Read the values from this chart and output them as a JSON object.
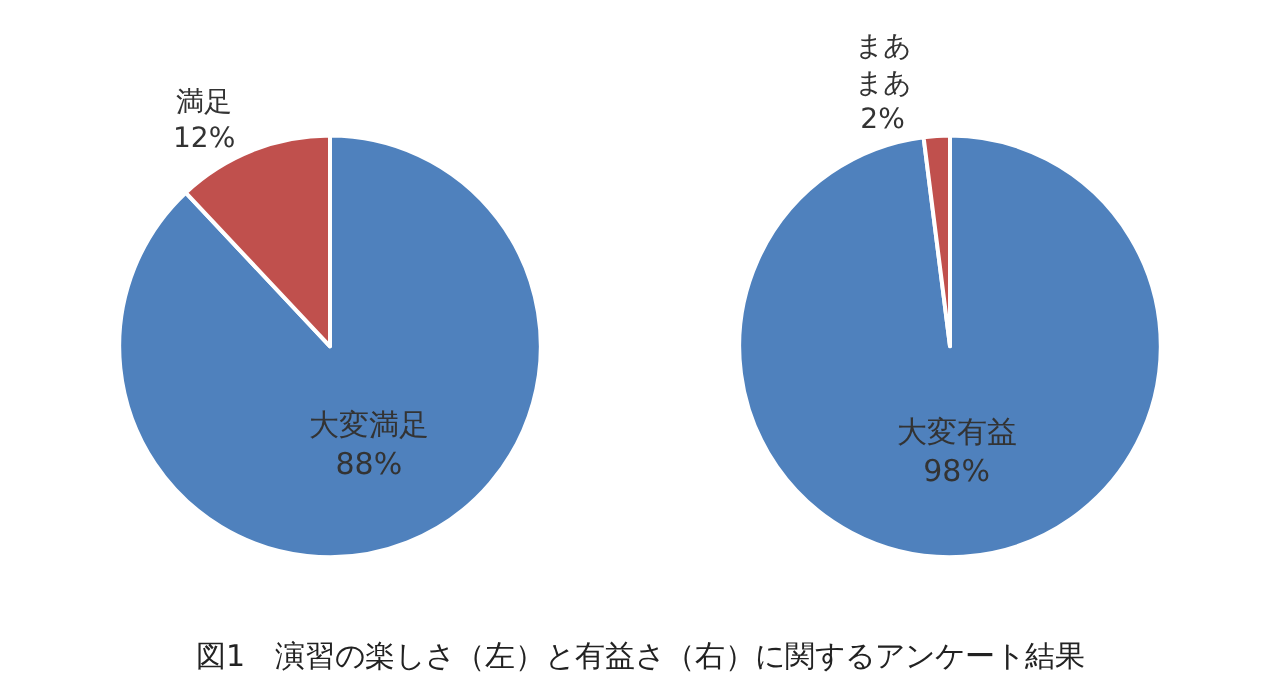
{
  "chart_data": [
    {
      "type": "pie",
      "categories": [
        "大変満足",
        "満足"
      ],
      "values": [
        88,
        12
      ],
      "value_labels": [
        "88%",
        "12%"
      ],
      "colors": [
        "#4f81bd",
        "#c0504d"
      ],
      "annotations": [
        "図1　演習の楽しさ（左）と有益さ（右）に関するアンケート結果"
      ]
    },
    {
      "type": "pie",
      "categories": [
        "大変有益",
        "まあまあ"
      ],
      "values": [
        98,
        2
      ],
      "value_labels": [
        "98%",
        "2%"
      ],
      "colors": [
        "#4f81bd",
        "#c0504d"
      ]
    }
  ]
}
